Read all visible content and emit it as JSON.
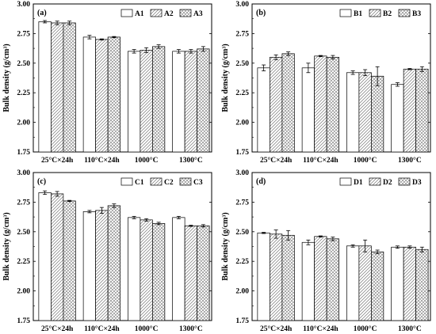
{
  "chart_data": [
    {
      "type": "bar",
      "panel_label": "(a)",
      "categories": [
        "25°C×24h",
        "110°C×24h",
        "1000°C",
        "1300°C"
      ],
      "series": [
        {
          "name": "A1",
          "values": [
            2.85,
            2.72,
            2.6,
            2.6
          ],
          "errors": [
            0.01,
            0.015,
            0.015,
            0.015
          ]
        },
        {
          "name": "A2",
          "values": [
            2.84,
            2.7,
            2.61,
            2.6
          ],
          "errors": [
            0.015,
            0.005,
            0.02,
            0.015
          ]
        },
        {
          "name": "A3",
          "values": [
            2.84,
            2.72,
            2.64,
            2.62
          ],
          "errors": [
            0.015,
            0.005,
            0.015,
            0.02
          ]
        }
      ],
      "ylabel": "Bulk density (g/cm³)",
      "ylim": [
        1.75,
        3.0
      ],
      "yticks": [
        "1.75",
        "2.00",
        "2.25",
        "2.50",
        "2.75",
        "3.00"
      ],
      "legend": "top-right"
    },
    {
      "type": "bar",
      "panel_label": "(b)",
      "categories": [
        "25°C×24h",
        "110°C×24h",
        "1000°C",
        "1300°C"
      ],
      "series": [
        {
          "name": "B1",
          "values": [
            2.46,
            2.46,
            2.42,
            2.32
          ],
          "errors": [
            0.025,
            0.04,
            0.015,
            0.015
          ]
        },
        {
          "name": "B2",
          "values": [
            2.55,
            2.56,
            2.42,
            2.45
          ],
          "errors": [
            0.02,
            0.005,
            0.025,
            0.005
          ]
        },
        {
          "name": "B3",
          "values": [
            2.58,
            2.55,
            2.39,
            2.45
          ],
          "errors": [
            0.015,
            0.015,
            0.08,
            0.02
          ]
        }
      ],
      "ylabel": "Bulk density (g/cm³)",
      "ylim": [
        1.75,
        3.0
      ],
      "yticks": [
        "1.75",
        "2.00",
        "2.25",
        "2.50",
        "2.75",
        "3.00"
      ],
      "legend": "top-right"
    },
    {
      "type": "bar",
      "panel_label": "(c)",
      "categories": [
        "25°C×24h",
        "110°C×24h",
        "1000°C",
        "1300°C"
      ],
      "series": [
        {
          "name": "C1",
          "values": [
            2.83,
            2.67,
            2.62,
            2.62
          ],
          "errors": [
            0.015,
            0.01,
            0.01,
            0.01
          ]
        },
        {
          "name": "C2",
          "values": [
            2.82,
            2.68,
            2.6,
            2.55
          ],
          "errors": [
            0.02,
            0.025,
            0.01,
            0.005
          ]
        },
        {
          "name": "C3",
          "values": [
            2.76,
            2.72,
            2.57,
            2.55
          ],
          "errors": [
            0.005,
            0.015,
            0.01,
            0.01
          ]
        }
      ],
      "ylabel": "Bulk density (g/cm³)",
      "ylim": [
        1.75,
        3.0
      ],
      "yticks": [
        "1.75",
        "2.00",
        "2.25",
        "2.50",
        "2.75",
        "3.00"
      ],
      "legend": "top-right"
    },
    {
      "type": "bar",
      "panel_label": "(d)",
      "categories": [
        "25°C×24h",
        "110°C×24h",
        "1000°C",
        "1300°C"
      ],
      "series": [
        {
          "name": "D1",
          "values": [
            2.49,
            2.41,
            2.38,
            2.37
          ],
          "errors": [
            0.005,
            0.02,
            0.01,
            0.01
          ]
        },
        {
          "name": "D2",
          "values": [
            2.48,
            2.46,
            2.38,
            2.37
          ],
          "errors": [
            0.035,
            0.005,
            0.05,
            0.01
          ]
        },
        {
          "name": "D3",
          "values": [
            2.47,
            2.44,
            2.33,
            2.35
          ],
          "errors": [
            0.04,
            0.015,
            0.015,
            0.02
          ]
        }
      ],
      "ylabel": "Bulk density (g/cm³)",
      "ylim": [
        1.75,
        3.0
      ],
      "yticks": [
        "1.75",
        "2.00",
        "2.25",
        "2.50",
        "2.75",
        "3.00"
      ],
      "legend": "top-right"
    }
  ],
  "colors": {
    "bar_fill": "#ffffff",
    "bar_stroke": "#000000",
    "hatch": "#666666",
    "error_bar": "#000000"
  },
  "patterns": [
    "none",
    "diagonal",
    "crosshatch"
  ]
}
